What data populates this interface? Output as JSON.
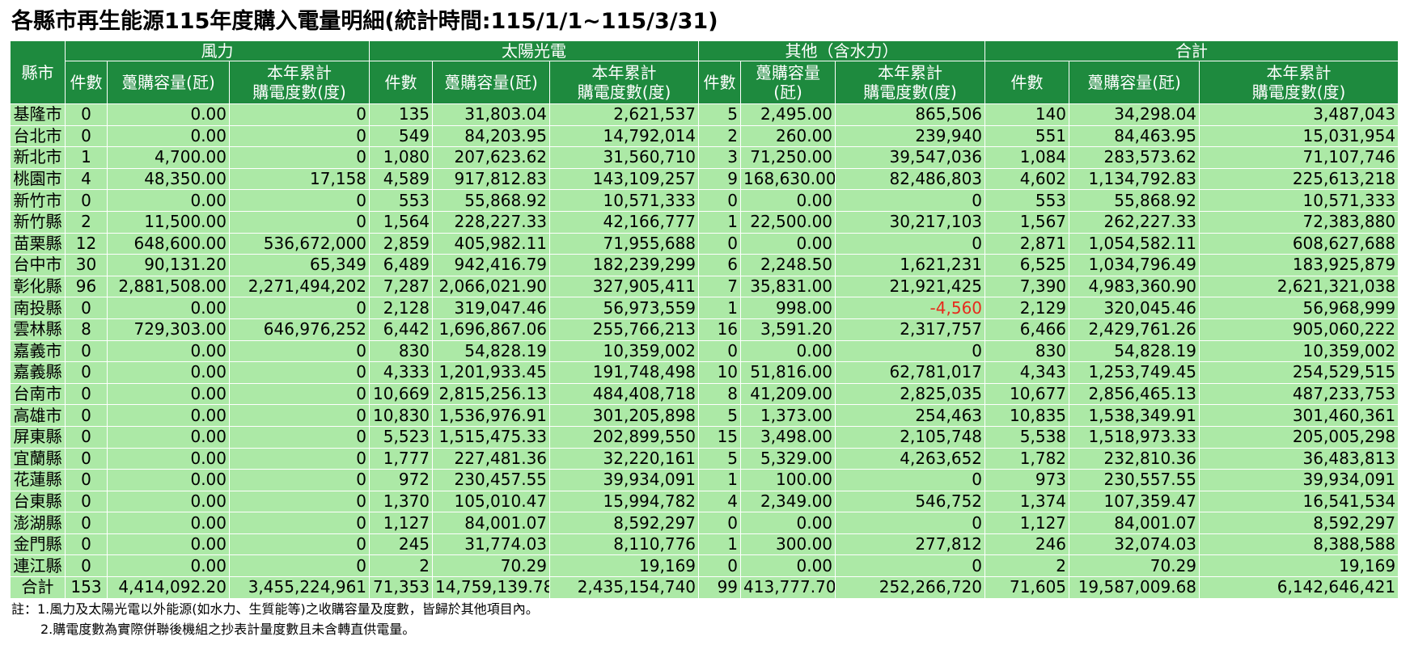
{
  "title": "各縣市再生能源115年度購入電量明細(統計時間:115/1/1~115/3/31)",
  "header": {
    "county": "縣市",
    "groups": [
      "風力",
      "太陽光電",
      "其他（含水力）",
      "合計"
    ],
    "sub": {
      "count": "件數",
      "capacity": "躉購容量(瓩)",
      "capacity_other": "躉購容量(瓩)",
      "energy": "本年累計購電度數(度)"
    }
  },
  "rows": [
    {
      "name": "基隆市",
      "w": [
        "0",
        "0.00",
        "0"
      ],
      "s": [
        "135",
        "31,803.04",
        "2,621,537"
      ],
      "o": [
        "5",
        "2,495.00",
        "865,506"
      ],
      "t": [
        "140",
        "34,298.04",
        "3,487,043"
      ]
    },
    {
      "name": "台北市",
      "w": [
        "0",
        "0.00",
        "0"
      ],
      "s": [
        "549",
        "84,203.95",
        "14,792,014"
      ],
      "o": [
        "2",
        "260.00",
        "239,940"
      ],
      "t": [
        "551",
        "84,463.95",
        "15,031,954"
      ]
    },
    {
      "name": "新北市",
      "w": [
        "1",
        "4,700.00",
        "0"
      ],
      "s": [
        "1,080",
        "207,623.62",
        "31,560,710"
      ],
      "o": [
        "3",
        "71,250.00",
        "39,547,036"
      ],
      "t": [
        "1,084",
        "283,573.62",
        "71,107,746"
      ]
    },
    {
      "name": "桃園市",
      "w": [
        "4",
        "48,350.00",
        "17,158"
      ],
      "s": [
        "4,589",
        "917,812.83",
        "143,109,257"
      ],
      "o": [
        "9",
        "168,630.00",
        "82,486,803"
      ],
      "t": [
        "4,602",
        "1,134,792.83",
        "225,613,218"
      ]
    },
    {
      "name": "新竹市",
      "w": [
        "0",
        "0.00",
        "0"
      ],
      "s": [
        "553",
        "55,868.92",
        "10,571,333"
      ],
      "o": [
        "0",
        "0.00",
        "0"
      ],
      "t": [
        "553",
        "55,868.92",
        "10,571,333"
      ]
    },
    {
      "name": "新竹縣",
      "w": [
        "2",
        "11,500.00",
        "0"
      ],
      "s": [
        "1,564",
        "228,227.33",
        "42,166,777"
      ],
      "o": [
        "1",
        "22,500.00",
        "30,217,103"
      ],
      "t": [
        "1,567",
        "262,227.33",
        "72,383,880"
      ]
    },
    {
      "name": "苗栗縣",
      "w": [
        "12",
        "648,600.00",
        "536,672,000"
      ],
      "s": [
        "2,859",
        "405,982.11",
        "71,955,688"
      ],
      "o": [
        "0",
        "0.00",
        "0"
      ],
      "t": [
        "2,871",
        "1,054,582.11",
        "608,627,688"
      ]
    },
    {
      "name": "台中市",
      "w": [
        "30",
        "90,131.20",
        "65,349"
      ],
      "s": [
        "6,489",
        "942,416.79",
        "182,239,299"
      ],
      "o": [
        "6",
        "2,248.50",
        "1,621,231"
      ],
      "t": [
        "6,525",
        "1,034,796.49",
        "183,925,879"
      ]
    },
    {
      "name": "彰化縣",
      "w": [
        "96",
        "2,881,508.00",
        "2,271,494,202"
      ],
      "s": [
        "7,287",
        "2,066,021.90",
        "327,905,411"
      ],
      "o": [
        "7",
        "35,831.00",
        "21,921,425"
      ],
      "t": [
        "7,390",
        "4,983,360.90",
        "2,621,321,038"
      ]
    },
    {
      "name": "南投縣",
      "w": [
        "0",
        "0.00",
        "0"
      ],
      "s": [
        "2,128",
        "319,047.46",
        "56,973,559"
      ],
      "o": [
        "1",
        "998.00",
        "-4,560"
      ],
      "t": [
        "2,129",
        "320,045.46",
        "56,968,999"
      ]
    },
    {
      "name": "雲林縣",
      "w": [
        "8",
        "729,303.00",
        "646,976,252"
      ],
      "s": [
        "6,442",
        "1,696,867.06",
        "255,766,213"
      ],
      "o": [
        "16",
        "3,591.20",
        "2,317,757"
      ],
      "t": [
        "6,466",
        "2,429,761.26",
        "905,060,222"
      ]
    },
    {
      "name": "嘉義市",
      "w": [
        "0",
        "0.00",
        "0"
      ],
      "s": [
        "830",
        "54,828.19",
        "10,359,002"
      ],
      "o": [
        "0",
        "0.00",
        "0"
      ],
      "t": [
        "830",
        "54,828.19",
        "10,359,002"
      ]
    },
    {
      "name": "嘉義縣",
      "w": [
        "0",
        "0.00",
        "0"
      ],
      "s": [
        "4,333",
        "1,201,933.45",
        "191,748,498"
      ],
      "o": [
        "10",
        "51,816.00",
        "62,781,017"
      ],
      "t": [
        "4,343",
        "1,253,749.45",
        "254,529,515"
      ]
    },
    {
      "name": "台南市",
      "w": [
        "0",
        "0.00",
        "0"
      ],
      "s": [
        "10,669",
        "2,815,256.13",
        "484,408,718"
      ],
      "o": [
        "8",
        "41,209.00",
        "2,825,035"
      ],
      "t": [
        "10,677",
        "2,856,465.13",
        "487,233,753"
      ]
    },
    {
      "name": "高雄市",
      "w": [
        "0",
        "0.00",
        "0"
      ],
      "s": [
        "10,830",
        "1,536,976.91",
        "301,205,898"
      ],
      "o": [
        "5",
        "1,373.00",
        "254,463"
      ],
      "t": [
        "10,835",
        "1,538,349.91",
        "301,460,361"
      ]
    },
    {
      "name": "屏東縣",
      "w": [
        "0",
        "0.00",
        "0"
      ],
      "s": [
        "5,523",
        "1,515,475.33",
        "202,899,550"
      ],
      "o": [
        "15",
        "3,498.00",
        "2,105,748"
      ],
      "t": [
        "5,538",
        "1,518,973.33",
        "205,005,298"
      ]
    },
    {
      "name": "宜蘭縣",
      "w": [
        "0",
        "0.00",
        "0"
      ],
      "s": [
        "1,777",
        "227,481.36",
        "32,220,161"
      ],
      "o": [
        "5",
        "5,329.00",
        "4,263,652"
      ],
      "t": [
        "1,782",
        "232,810.36",
        "36,483,813"
      ]
    },
    {
      "name": "花蓮縣",
      "w": [
        "0",
        "0.00",
        "0"
      ],
      "s": [
        "972",
        "230,457.55",
        "39,934,091"
      ],
      "o": [
        "1",
        "100.00",
        "0"
      ],
      "t": [
        "973",
        "230,557.55",
        "39,934,091"
      ]
    },
    {
      "name": "台東縣",
      "w": [
        "0",
        "0.00",
        "0"
      ],
      "s": [
        "1,370",
        "105,010.47",
        "15,994,782"
      ],
      "o": [
        "4",
        "2,349.00",
        "546,752"
      ],
      "t": [
        "1,374",
        "107,359.47",
        "16,541,534"
      ]
    },
    {
      "name": "澎湖縣",
      "w": [
        "0",
        "0.00",
        "0"
      ],
      "s": [
        "1,127",
        "84,001.07",
        "8,592,297"
      ],
      "o": [
        "0",
        "0.00",
        "0"
      ],
      "t": [
        "1,127",
        "84,001.07",
        "8,592,297"
      ]
    },
    {
      "name": "金門縣",
      "w": [
        "0",
        "0.00",
        "0"
      ],
      "s": [
        "245",
        "31,774.03",
        "8,110,776"
      ],
      "o": [
        "1",
        "300.00",
        "277,812"
      ],
      "t": [
        "246",
        "32,074.03",
        "8,388,588"
      ]
    },
    {
      "name": "連江縣",
      "w": [
        "0",
        "0.00",
        "0"
      ],
      "s": [
        "2",
        "70.29",
        "19,169"
      ],
      "o": [
        "0",
        "0.00",
        "0"
      ],
      "t": [
        "2",
        "70.29",
        "19,169"
      ]
    },
    {
      "name": "合計",
      "w": [
        "153",
        "4,414,092.20",
        "3,455,224,961"
      ],
      "s": [
        "71,353",
        "14,759,139.78",
        "2,435,154,740"
      ],
      "o": [
        "99",
        "413,777.70",
        "252,266,720"
      ],
      "t": [
        "71,605",
        "19,587,009.68",
        "6,142,646,421"
      ]
    }
  ],
  "negative_color": "#e8291c",
  "notes": [
    "註：1.風力及太陽光電以外能源(如水力、生質能等)之收購容量及度數，皆歸於其他項目內。",
    "2.購電度數為實際併聯後機組之抄表計量度數且未含轉直供電量。"
  ]
}
